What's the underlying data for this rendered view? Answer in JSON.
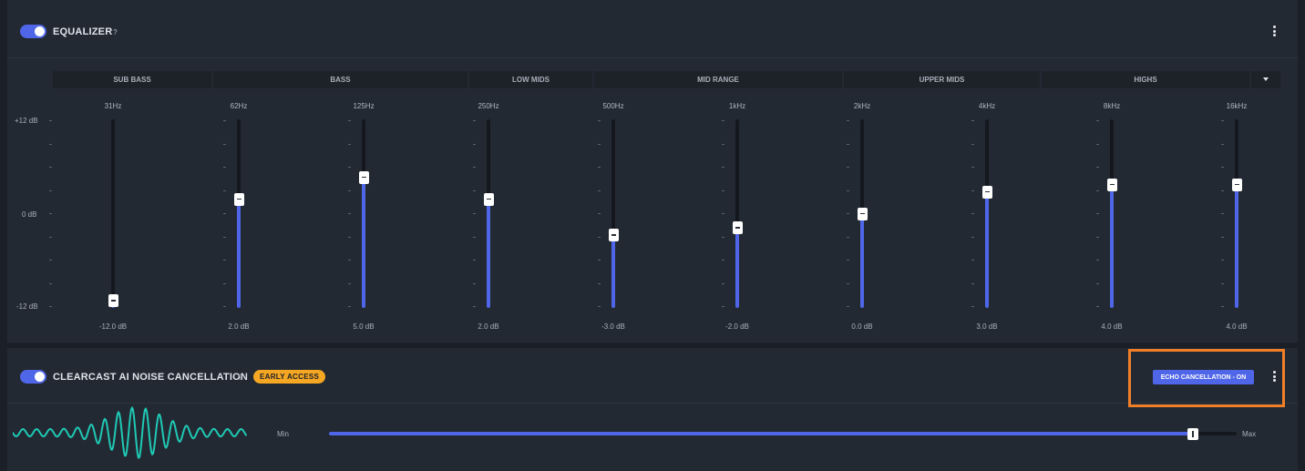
{
  "equalizer": {
    "title": "EQUALIZER",
    "help": "?",
    "enabled": true,
    "bands": [
      {
        "label": "SUB BASS"
      },
      {
        "label": "BASS"
      },
      {
        "label": "LOW MIDS"
      },
      {
        "label": "MID RANGE"
      },
      {
        "label": "UPPER MIDS"
      },
      {
        "label": "HIGHS"
      }
    ],
    "axis": {
      "max_label": "+12 dB",
      "mid_label": "0 dB",
      "min_label": "-12 dB",
      "min": -12,
      "max": 12
    },
    "sliders": [
      {
        "freq": "31Hz",
        "value": -12.0,
        "value_label": "-12.0 dB"
      },
      {
        "freq": "62Hz",
        "value": 2.0,
        "value_label": "2.0 dB"
      },
      {
        "freq": "125Hz",
        "value": 5.0,
        "value_label": "5.0 dB"
      },
      {
        "freq": "250Hz",
        "value": 2.0,
        "value_label": "2.0 dB"
      },
      {
        "freq": "500Hz",
        "value": -3.0,
        "value_label": "-3.0 dB"
      },
      {
        "freq": "1kHz",
        "value": -2.0,
        "value_label": "-2.0 dB"
      },
      {
        "freq": "2kHz",
        "value": 0.0,
        "value_label": "0.0 dB"
      },
      {
        "freq": "4kHz",
        "value": 3.0,
        "value_label": "3.0 dB"
      },
      {
        "freq": "8kHz",
        "value": 4.0,
        "value_label": "4.0 dB"
      },
      {
        "freq": "16kHz",
        "value": 4.0,
        "value_label": "4.0 dB"
      }
    ]
  },
  "noise_cancellation": {
    "title": "CLEARCAST AI NOISE CANCELLATION",
    "help": "?",
    "enabled": true,
    "badge": "EARLY ACCESS",
    "echo_button": "ECHO CANCELLATION - ON",
    "slider": {
      "min_label": "Min",
      "max_label": "Max",
      "value_fraction": 0.952
    }
  },
  "colors": {
    "accent": "#4f66e8",
    "badge": "#f5a623",
    "highlight": "#f07f28",
    "waveform": "#1fc9b5"
  }
}
